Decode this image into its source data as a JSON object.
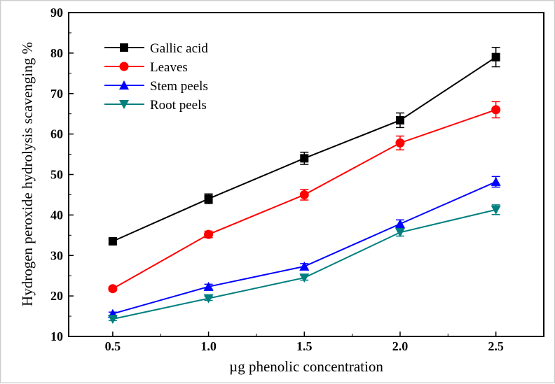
{
  "chart_data": {
    "type": "line",
    "title": "",
    "xlabel": "µg phenolic concentration",
    "ylabel": "Hydrogen peroxide hydrolysis scavenging %",
    "x": [
      0.5,
      1.0,
      1.5,
      2.0,
      2.5
    ],
    "x_tick_labels": [
      "0.5",
      "1.0",
      "1.5",
      "2.0",
      "2.5"
    ],
    "y_tick_labels": [
      "10",
      "20",
      "30",
      "40",
      "50",
      "60",
      "70",
      "80",
      "90"
    ],
    "xlim": [
      0.27,
      2.75
    ],
    "ylim": [
      10,
      90
    ],
    "grid": false,
    "legend_position": "top-left",
    "series": [
      {
        "name": "Gallic acid",
        "color": "#000000",
        "marker": "square",
        "values": [
          33.5,
          44.0,
          54.0,
          63.4,
          79.0
        ],
        "errors": [
          0.6,
          1.2,
          1.5,
          1.8,
          2.4
        ]
      },
      {
        "name": "Leaves",
        "color": "#ff0000",
        "marker": "circle",
        "values": [
          21.8,
          35.2,
          45.0,
          57.8,
          66.0
        ],
        "errors": [
          0.5,
          0.8,
          1.3,
          1.7,
          2.0
        ]
      },
      {
        "name": "Stem peels",
        "color": "#0000ff",
        "marker": "triangle-up",
        "values": [
          15.6,
          22.3,
          27.3,
          37.8,
          48.2
        ],
        "errors": [
          0.4,
          0.6,
          0.7,
          1.0,
          1.3
        ]
      },
      {
        "name": "Root peels",
        "color": "#007f7f",
        "marker": "triangle-down",
        "values": [
          14.3,
          19.4,
          24.5,
          35.7,
          41.3
        ],
        "errors": [
          0.4,
          0.5,
          0.6,
          0.9,
          1.2
        ]
      }
    ]
  }
}
